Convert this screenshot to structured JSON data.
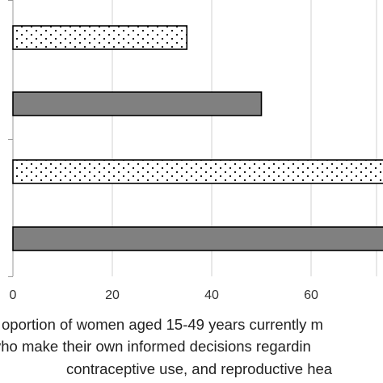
{
  "chart_data": {
    "type": "bar",
    "orientation": "horizontal",
    "xlim": [
      0,
      75
    ],
    "x_ticks": [
      0,
      20,
      40,
      60
    ],
    "x_tick_labels": [
      "0",
      "20",
      "40",
      "60"
    ],
    "xlabel_lines": [
      "oportion of women aged 15-49 years currently m",
      "vho make their own informed decisions regardin",
      "contraceptive use, and reproductive hea"
    ],
    "grid": "vertical",
    "bars": [
      {
        "value": 35,
        "pattern": "dotted",
        "fill": "#ffffff"
      },
      {
        "value": 50,
        "pattern": "solid",
        "fill": "#808080"
      },
      {
        "value": 75,
        "pattern": "dotted",
        "fill": "#ffffff"
      },
      {
        "value": 75,
        "pattern": "solid",
        "fill": "#808080"
      }
    ]
  }
}
